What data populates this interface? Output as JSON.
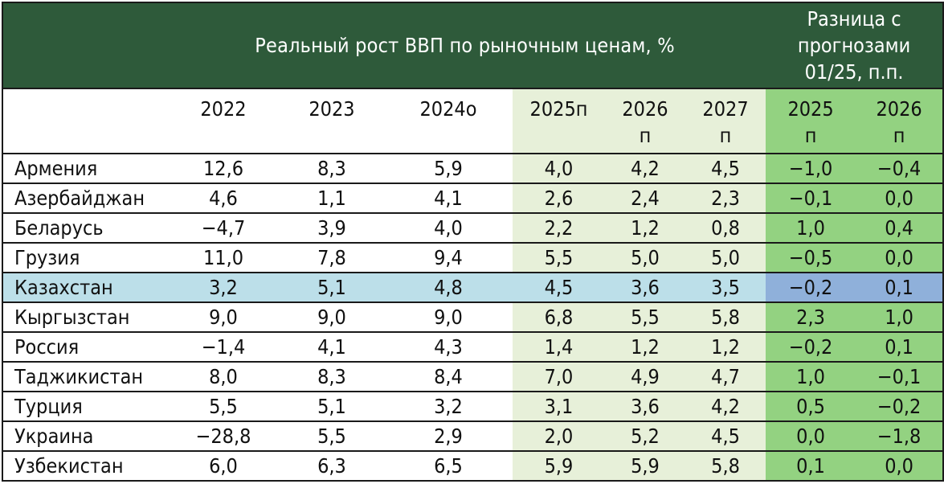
{
  "header": {
    "title": "Реальный рост ВВП по рыночным ценам, %",
    "diff_title_lines": [
      "Разница с",
      "прогнозами",
      "01/25, п.п."
    ]
  },
  "columns": [
    {
      "line1": "",
      "line2": ""
    },
    {
      "line1": "2022",
      "line2": ""
    },
    {
      "line1": "2023",
      "line2": ""
    },
    {
      "line1": "2024о",
      "line2": ""
    },
    {
      "line1": "2025п",
      "line2": ""
    },
    {
      "line1": "2026",
      "line2": "п"
    },
    {
      "line1": "2027",
      "line2": "п"
    },
    {
      "line1": "2025",
      "line2": "п"
    },
    {
      "line1": "2026",
      "line2": "п"
    }
  ],
  "rows": [
    {
      "country": "Армения",
      "values": [
        "12,6",
        "8,3",
        "5,9",
        "4,0",
        "4,2",
        "4,5",
        "−1,0",
        "−0,4"
      ]
    },
    {
      "country": "Азербайджан",
      "values": [
        "4,6",
        "1,1",
        "4,1",
        "2,6",
        "2,4",
        "2,3",
        "−0,1",
        "0,0"
      ]
    },
    {
      "country": "Беларусь",
      "values": [
        "−4,7",
        "3,9",
        "4,0",
        "2,2",
        "1,2",
        "0,8",
        "1,0",
        "0,4"
      ]
    },
    {
      "country": "Грузия",
      "values": [
        "11,0",
        "7,8",
        "9,4",
        "5,5",
        "5,0",
        "5,0",
        "−0,5",
        "0,0"
      ]
    },
    {
      "country": "Казахстан",
      "values": [
        "3,2",
        "5,1",
        "4,8",
        "4,5",
        "3,6",
        "3,5",
        "−0,2",
        "0,1"
      ]
    },
    {
      "country": "Кыргызстан",
      "values": [
        "9,0",
        "9,0",
        "9,0",
        "6,8",
        "5,5",
        "5,8",
        "2,3",
        "1,0"
      ]
    },
    {
      "country": "Россия",
      "values": [
        "−1,4",
        "4,1",
        "4,3",
        "1,4",
        "1,2",
        "1,2",
        "−0,2",
        "0,1"
      ]
    },
    {
      "country": "Таджикистан",
      "values": [
        "8,0",
        "8,3",
        "8,4",
        "7,0",
        "4,9",
        "4,7",
        "1,0",
        "−0,1"
      ]
    },
    {
      "country": "Турция",
      "values": [
        "5,5",
        "5,1",
        "3,2",
        "3,1",
        "3,6",
        "4,2",
        "0,5",
        "−0,2"
      ]
    },
    {
      "country": "Украина",
      "values": [
        "−28,8",
        "5,5",
        "2,9",
        "2,0",
        "5,2",
        "4,5",
        "0,0",
        "−1,8"
      ]
    },
    {
      "country": "Узбекистан",
      "values": [
        "6,0",
        "6,3",
        "6,5",
        "5,9",
        "5,9",
        "5,8",
        "0,1",
        "0,0"
      ]
    }
  ],
  "highlighted_row": "Казахстан",
  "colors": {
    "header_bg": "#2e5a3a",
    "forecast_bg": "#e7f0d9",
    "diff_bg": "#93d281",
    "highlight_row_bg": "#bcdfe9",
    "highlight_diff_bg": "#8fb0da"
  }
}
